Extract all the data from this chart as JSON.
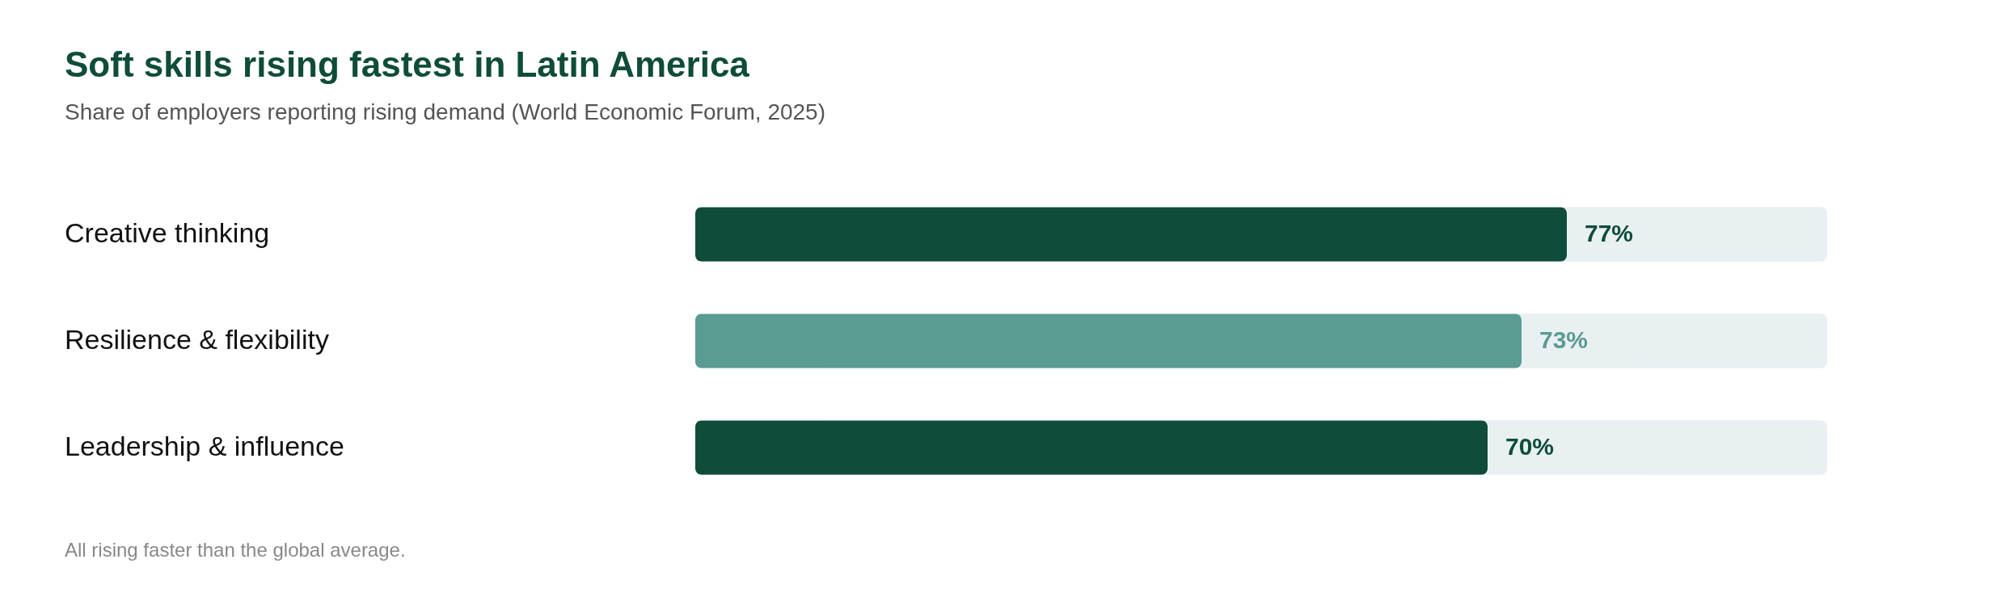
{
  "chart_data": {
    "type": "bar",
    "orientation": "horizontal",
    "title": "Soft skills rising fastest in Latin America",
    "subtitle": "Share of employers reporting rising demand (World Economic Forum, 2025)",
    "categories": [
      "Creative thinking",
      "Resilience & flexibility",
      "Leadership & influence"
    ],
    "values": [
      77,
      73,
      70
    ],
    "colors": [
      "#0f4c3a",
      "#5a9b92",
      "#0f4c3a"
    ],
    "value_labels": [
      "77%",
      "73%",
      "70%"
    ],
    "xlim": [
      0,
      100
    ],
    "bands": [
      {
        "axis": "x",
        "from": 0,
        "to": 100,
        "color": "#e8f0f2"
      }
    ],
    "annotations": [
      "All rising faster than the global average."
    ],
    "legend": false
  }
}
